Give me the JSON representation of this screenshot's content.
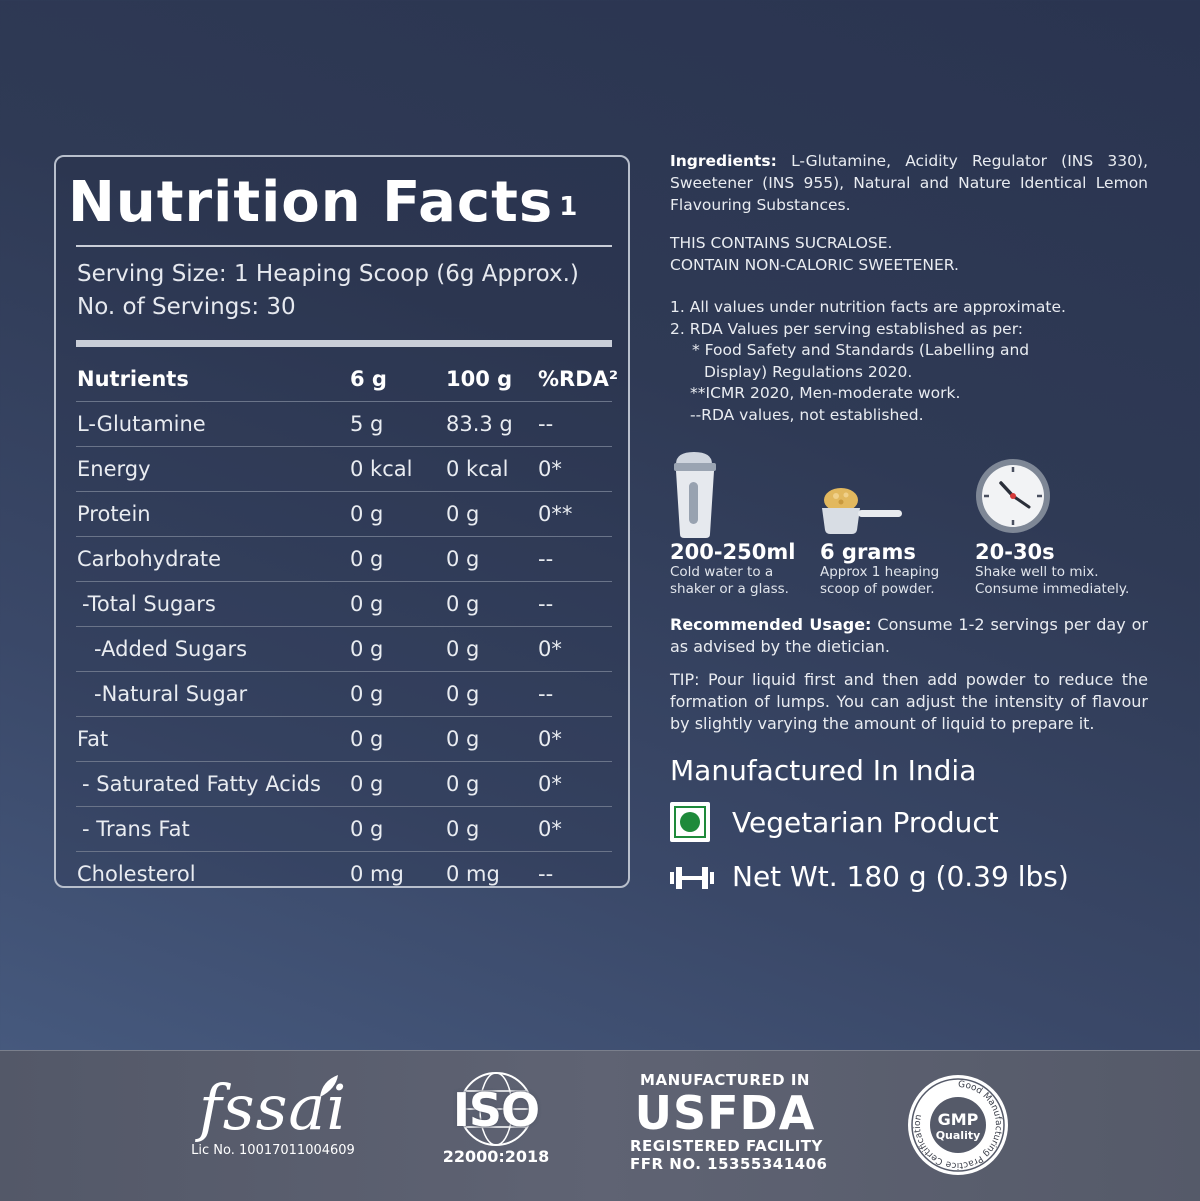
{
  "nutrition": {
    "title": "Nutrition Facts",
    "title_sup": "1",
    "serving_size": "Serving Size: 1 Heaping Scoop (6g Approx.)",
    "servings": "No. of Servings: 30",
    "headers": [
      "Nutrients",
      "6 g",
      "100 g",
      "%RDA²"
    ],
    "rows": [
      [
        "L-Glutamine",
        "5 g",
        "83.3 g",
        "--"
      ],
      [
        "Energy",
        "0 kcal",
        "0 kcal",
        "0*"
      ],
      [
        "Protein",
        "0 g",
        "0 g",
        "0**"
      ],
      [
        "Carbohydrate",
        "0 g",
        "0 g",
        "--"
      ],
      [
        "-Total Sugars",
        "0 g",
        "0 g",
        "--"
      ],
      [
        "-Added Sugars",
        "0 g",
        "0 g",
        "0*"
      ],
      [
        "-Natural Sugar",
        "0 g",
        "0 g",
        "--"
      ],
      [
        "Fat",
        "0 g",
        "0 g",
        "0*"
      ],
      [
        "- Saturated Fatty Acids",
        "0 g",
        "0 g",
        "0*"
      ],
      [
        "- Trans Fat",
        "0 g",
        "0 g",
        "0*"
      ],
      [
        "Cholesterol",
        "0 mg",
        "0 mg",
        "--"
      ]
    ]
  },
  "ingredients": {
    "label": "Ingredients:",
    "text": "L-Glutamine, Acidity Regulator (INS 330), Sweetener (INS 955), Natural and Nature Identical Lemon Flavouring Substances."
  },
  "notice": {
    "line1": "THIS CONTAINS SUCRALOSE.",
    "line2": "CONTAIN NON-CALORIC SWEETENER."
  },
  "notes": {
    "n1": "1.  All values under nutrition facts  are approximate.",
    "n2": "2.  RDA Values per serving established as per:",
    "n3": "* Food Safety and Standards (Labelling and",
    "n4": "Display) Regulations 2020.",
    "n5": "**ICMR 2020, Men-moderate work.",
    "n6": "--RDA values, not established."
  },
  "usage": [
    {
      "icon": "shaker-icon",
      "big": "200-250ml",
      "line1": "Cold water to a",
      "line2": "shaker or a glass."
    },
    {
      "icon": "scoop-icon",
      "big": "6 grams",
      "line1": "Approx 1 heaping",
      "line2": "scoop of powder."
    },
    {
      "icon": "clock-icon",
      "big": "20-30s",
      "line1": "Shake well to mix.",
      "line2": "Consume immediately."
    }
  ],
  "recommended": {
    "label": "Recommended Usage:",
    "text": "Consume 1-2 servings per day or as advised by the dietician."
  },
  "tip": "TIP: Pour liquid first and then add powder to reduce the formation of lumps. You can adjust the intensity of flavour by slightly varying the amount of liquid to prepare it.",
  "made_in": "Manufactured In India",
  "veg": {
    "label": "Vegetarian Product",
    "icon": "veg-mark-icon",
    "color": "#1e8a3a"
  },
  "weight": {
    "label": "Net Wt. 180 g (0.39 lbs)",
    "icon": "dumbbell-icon"
  },
  "footer": {
    "fssai": {
      "logo": "fssai",
      "lic": "Lic No. 10017011004609"
    },
    "iso": {
      "logo": "ISO",
      "number": "22000:2018"
    },
    "usfda": {
      "top": "MANUFACTURED IN",
      "logo": "USFDA",
      "mid": "REGISTERED FACILITY",
      "bot": "FFR NO. 15355341406"
    },
    "gmp": {
      "center1": "GMP",
      "center2": "Quality",
      "ring": "Good Manufacturing Practice Certification"
    }
  }
}
